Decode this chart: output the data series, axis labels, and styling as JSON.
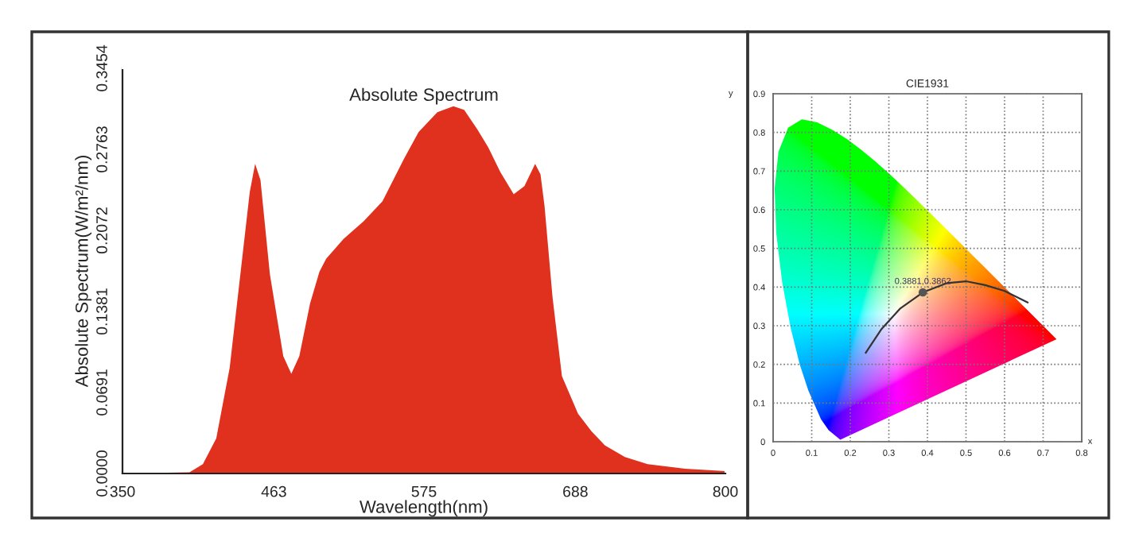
{
  "chart_data": [
    {
      "type": "area",
      "title": "Absolute Spectrum",
      "xlabel": "Wavelength(nm)",
      "ylabel": "Absolute Spectrum(W/m²/nm)",
      "xlim": [
        350,
        800
      ],
      "xticks": [
        350,
        463,
        575,
        688,
        800
      ],
      "ylim": [
        0,
        0.3454
      ],
      "yticks": [
        {
          "value": 0,
          "label": "0.0000"
        },
        {
          "value": 0.0691,
          "label": "0.0691"
        },
        {
          "value": 0.1381,
          "label": "0.1381"
        },
        {
          "value": 0.2072,
          "label": "0.2072"
        },
        {
          "value": 0.2763,
          "label": "0.2763"
        },
        {
          "value": 0.3454,
          "label": "0.3454"
        }
      ],
      "grid": false,
      "x": [
        350,
        400,
        410,
        420,
        430,
        440,
        445,
        449,
        453,
        460,
        470,
        476,
        482,
        490,
        497,
        502,
        515,
        530,
        544,
        560,
        571,
        585,
        597,
        605,
        615,
        623,
        632,
        642,
        650,
        658,
        662,
        665,
        671,
        678,
        690,
        700,
        710,
        725,
        742,
        770,
        800
      ],
      "series": [
        {
          "color": "#e0301e",
          "values": [
            0,
            0.001,
            0.008,
            0.03,
            0.09,
            0.19,
            0.24,
            0.264,
            0.25,
            0.17,
            0.1,
            0.085,
            0.1,
            0.145,
            0.172,
            0.183,
            0.2,
            0.215,
            0.232,
            0.268,
            0.291,
            0.308,
            0.313,
            0.31,
            0.293,
            0.278,
            0.257,
            0.238,
            0.245,
            0.264,
            0.255,
            0.228,
            0.15,
            0.083,
            0.051,
            0.036,
            0.024,
            0.014,
            0.008,
            0.004,
            0.002
          ]
        }
      ]
    },
    {
      "type": "line",
      "title": "CIE1931",
      "xlabel": "x",
      "ylabel": "y",
      "xlim": [
        0,
        0.8
      ],
      "xticks": [
        0,
        0.1,
        0.2,
        0.3,
        0.4,
        0.5,
        0.6,
        0.7,
        0.8
      ],
      "ylim": [
        0,
        0.9
      ],
      "yticks": [
        0,
        0.1,
        0.2,
        0.3,
        0.4,
        0.5,
        0.6,
        0.7,
        0.8,
        0.9
      ],
      "grid": true,
      "series": [
        {
          "type": "line",
          "color": "#333333",
          "x": [
            0.24,
            0.28,
            0.33,
            0.3881,
            0.45,
            0.5,
            0.55,
            0.6,
            0.66
          ],
          "values": [
            0.23,
            0.29,
            0.345,
            0.3862,
            0.41,
            0.415,
            0.405,
            0.39,
            0.36
          ]
        },
        {
          "type": "scatter",
          "color": "#555555",
          "marker": "circle",
          "x": [
            0.3881
          ],
          "values": [
            0.3862
          ]
        }
      ],
      "annotations": [
        {
          "text": "0.3881,0.3862",
          "x": 0.3881,
          "y": 0.3862
        }
      ]
    }
  ]
}
